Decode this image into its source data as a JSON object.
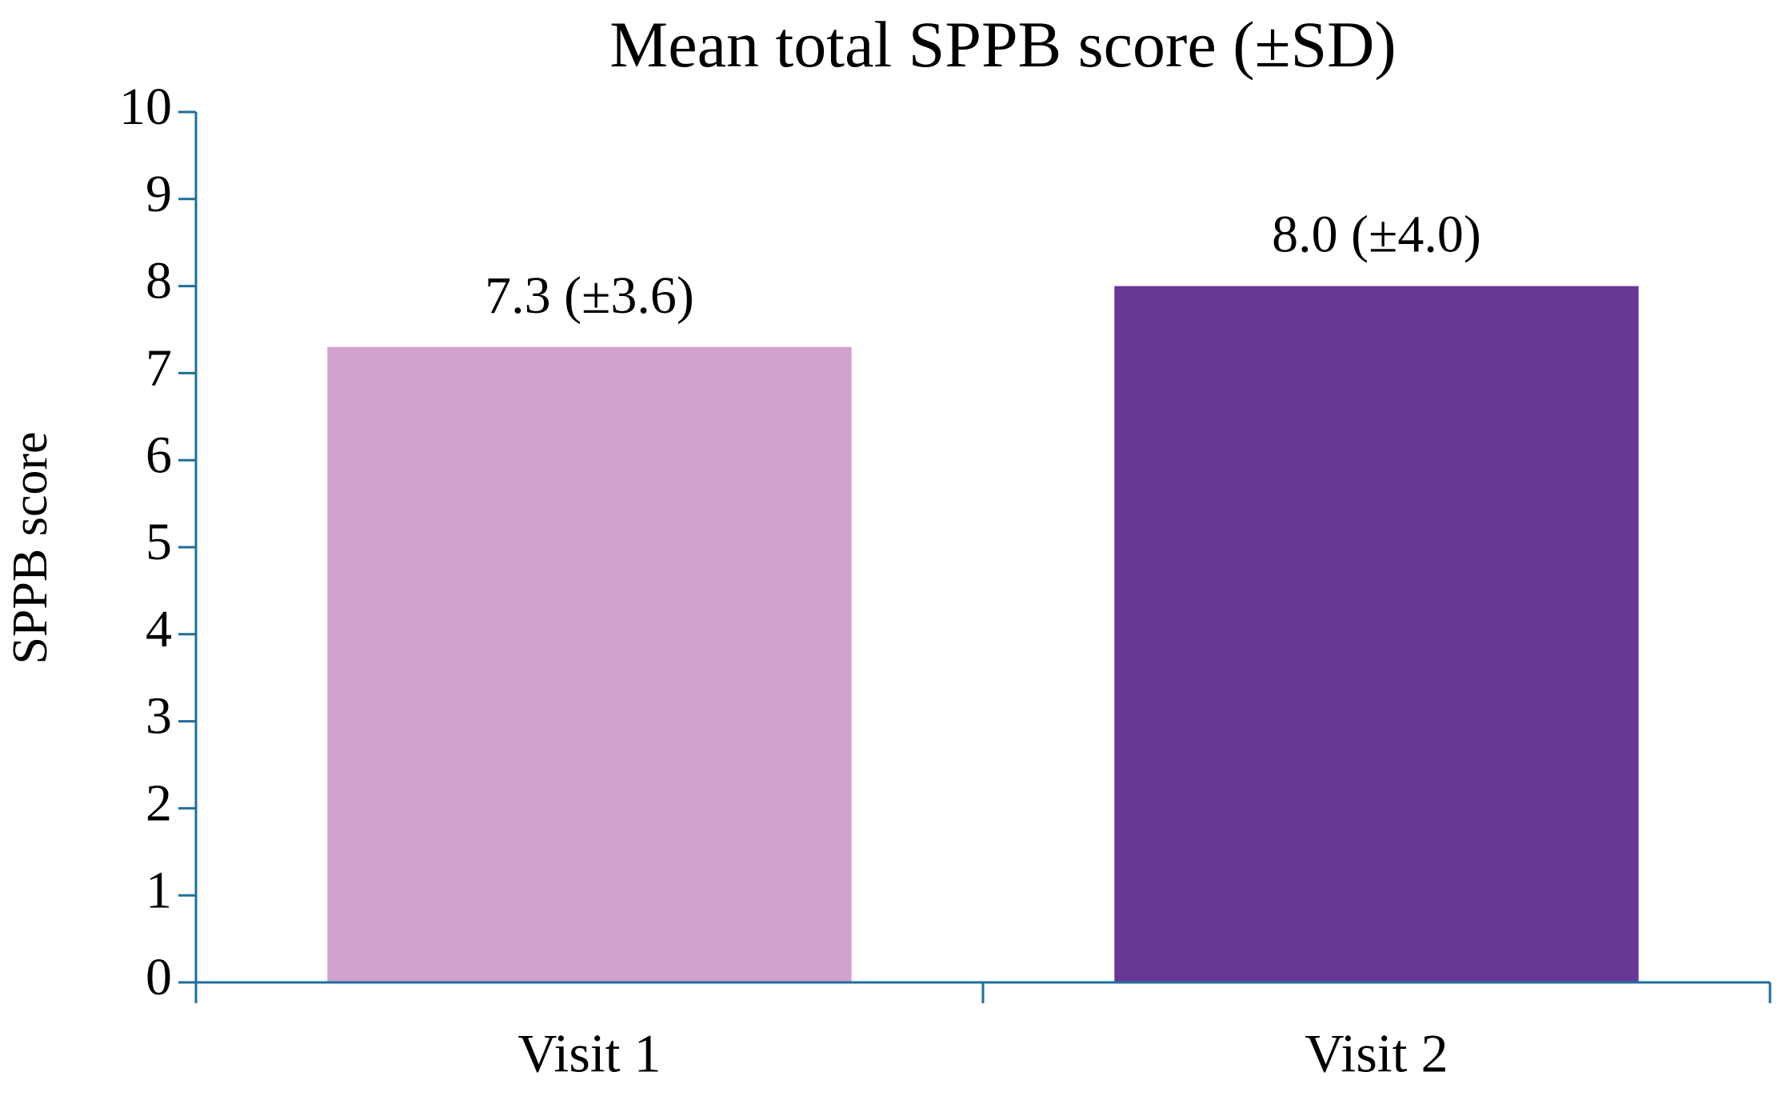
{
  "chart_data": {
    "type": "bar",
    "title": "Mean total SPPB score (±SD)",
    "y_label": "SPPB score",
    "categories": [
      "Visit 1",
      "Visit 2"
    ],
    "values": [
      7.3,
      8.0
    ],
    "value_labels": [
      "7.3 (±3.6)",
      "8.0 (±4.0)"
    ],
    "colors": [
      "#d2a1cd",
      "#673896"
    ],
    "axis_color": "#1f6e9c",
    "ylim": [
      0,
      10
    ],
    "yticks": [
      0,
      1,
      2,
      3,
      4,
      5,
      6,
      7,
      8,
      9,
      10
    ],
    "grid": false
  }
}
